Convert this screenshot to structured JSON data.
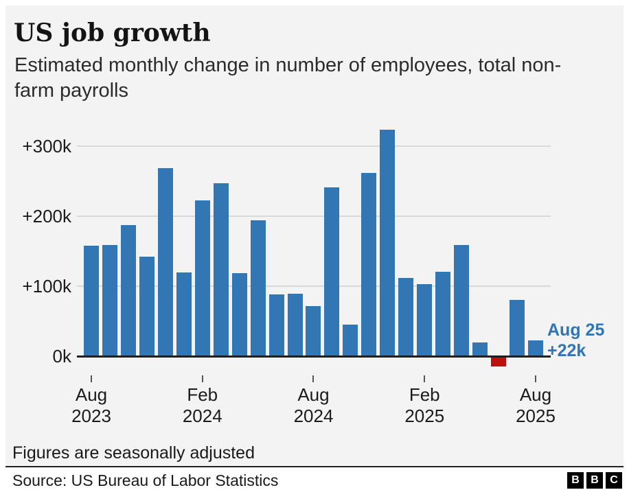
{
  "header": {
    "title": "US job growth",
    "subtitle": "Estimated monthly change in number of employees, total non-farm payrolls"
  },
  "chart_data": {
    "type": "bar",
    "x": [
      "Aug 2023",
      "Sep 2023",
      "Oct 2023",
      "Nov 2023",
      "Dec 2023",
      "Jan 2024",
      "Feb 2024",
      "Mar 2024",
      "Apr 2024",
      "May 2024",
      "Jun 2024",
      "Jul 2024",
      "Aug 2024",
      "Sep 2024",
      "Oct 2024",
      "Nov 2024",
      "Dec 2024",
      "Jan 2025",
      "Feb 2025",
      "Mar 2025",
      "Apr 2025",
      "May 2025",
      "Jun 2025",
      "Jul 2025",
      "Aug 2025"
    ],
    "values": [
      157,
      158,
      186,
      141,
      268,
      119,
      222,
      246,
      118,
      193,
      87,
      88,
      71,
      240,
      44,
      261,
      323,
      111,
      102,
      120,
      158,
      19,
      -13,
      79,
      22
    ],
    "unit": "k",
    "title": "US job growth",
    "xlabel": "",
    "ylabel": "",
    "ylim": [
      -20,
      340
    ],
    "grid": true,
    "legend": false,
    "yticks": [
      {
        "label": "+300k",
        "value": 300
      },
      {
        "label": "+200k",
        "value": 200
      },
      {
        "label": "+100k",
        "value": 100
      },
      {
        "label": "0k",
        "value": 0
      }
    ],
    "xticks": [
      {
        "index": 0,
        "line1": "Aug",
        "line2": "2023"
      },
      {
        "index": 6,
        "line1": "Feb",
        "line2": "2024"
      },
      {
        "index": 12,
        "line1": "Aug",
        "line2": "2024"
      },
      {
        "index": 18,
        "line1": "Feb",
        "line2": "2025"
      },
      {
        "index": 24,
        "line1": "Aug",
        "line2": "2025"
      }
    ],
    "bar_color": "#3276b4",
    "negative_color": "#c00d0d",
    "annotation": {
      "line1": "Aug 25",
      "line2": "+22k",
      "color": "#2e76b6"
    }
  },
  "footer": {
    "note": "Figures are seasonally adjusted",
    "source": "Source: US Bureau of Labor Statistics",
    "logo": [
      "B",
      "B",
      "C"
    ]
  }
}
